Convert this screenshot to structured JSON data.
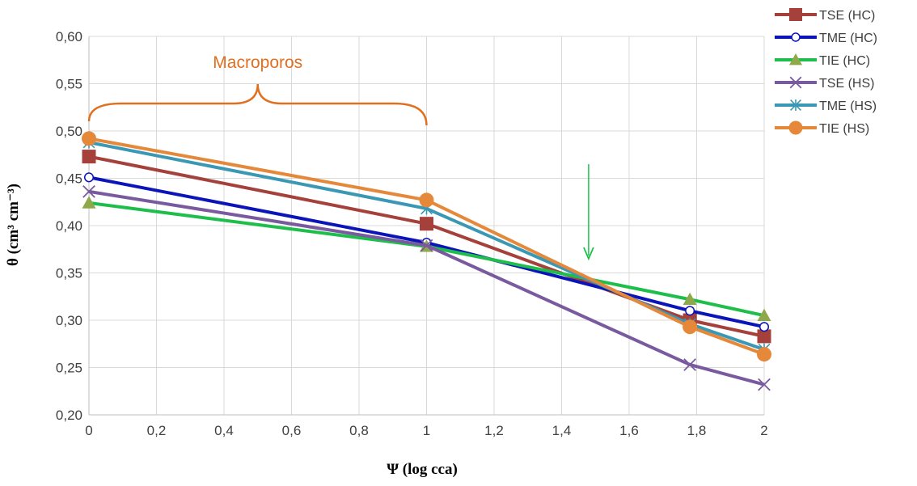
{
  "chart_data": {
    "type": "line",
    "x_ticks": [
      "0",
      "0,2",
      "0,4",
      "0,6",
      "0,8",
      "1",
      "1,2",
      "1,4",
      "1,6",
      "1,8",
      "2"
    ],
    "y_ticks": [
      "0,20",
      "0,25",
      "0,30",
      "0,35",
      "0,40",
      "0,45",
      "0,50",
      "0,55",
      "0,60"
    ],
    "xlim": [
      0,
      2
    ],
    "ylim": [
      0.2,
      0.6
    ],
    "grid": true,
    "legend_position": "top-right",
    "xlabel_main": "Ψ (log cca)",
    "ylabel": "θ (cm³ cm⁻³)",
    "x": [
      0,
      1,
      1.78,
      2
    ],
    "series": [
      {
        "name": "TSE (HC)",
        "color": "#A5403A",
        "marker": "square",
        "values": [
          0.473,
          0.402,
          0.3,
          0.283
        ]
      },
      {
        "name": "TME (HC)",
        "color": "#0B14B8",
        "marker": "circle-open",
        "values": [
          0.451,
          0.382,
          0.31,
          0.293
        ]
      },
      {
        "name": "TIE (HC)",
        "color": "#1DBF4A",
        "marker": "triangle",
        "values": [
          0.424,
          0.378,
          0.322,
          0.305
        ]
      },
      {
        "name": "TSE (HS)",
        "color": "#7A5A9E",
        "marker": "x",
        "values": [
          0.436,
          0.379,
          0.253,
          0.232
        ]
      },
      {
        "name": "TME (HS)",
        "color": "#3A98B5",
        "marker": "star",
        "values": [
          0.488,
          0.418,
          0.296,
          0.269
        ]
      },
      {
        "name": "TIE (HS)",
        "color": "#E5883A",
        "marker": "circle",
        "values": [
          0.492,
          0.427,
          0.293,
          0.264
        ]
      }
    ],
    "annotations": {
      "macroporos_label": "Macroporos",
      "macroporos_color": "#E07020",
      "arrow_color": "#1DBF4A",
      "arrow_x": 1.48,
      "arrow_y_from": 0.465,
      "arrow_y_to": 0.365
    }
  }
}
